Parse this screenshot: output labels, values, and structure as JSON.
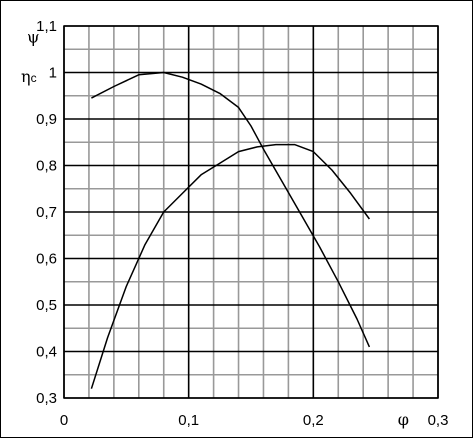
{
  "chart_data": {
    "type": "line",
    "xlim": [
      0,
      0.3
    ],
    "ylim": [
      0.3,
      1.1
    ],
    "x_ticks": [
      {
        "value": 0,
        "label": "0"
      },
      {
        "value": 0.1,
        "label": "0,1"
      },
      {
        "value": 0.2,
        "label": "0,2"
      },
      {
        "value": 0.3,
        "label": "0,3"
      }
    ],
    "y_ticks": [
      {
        "value": 0.3,
        "label": "0,3"
      },
      {
        "value": 0.4,
        "label": "0,4"
      },
      {
        "value": 0.5,
        "label": "0,5"
      },
      {
        "value": 0.6,
        "label": "0,6"
      },
      {
        "value": 0.7,
        "label": "0,7"
      },
      {
        "value": 0.8,
        "label": "0,8"
      },
      {
        "value": 0.9,
        "label": "0,9"
      },
      {
        "value": 1.0,
        "label": "1"
      },
      {
        "value": 1.1,
        "label": "1,1"
      }
    ],
    "grid": {
      "minor_step_x": 0.02,
      "minor_step_y": 0.05,
      "major_step_x": 0.1,
      "major_step_y": 0.1
    },
    "xlabel": "φ",
    "ylabel_lines": [
      "ψ",
      "η"
    ],
    "ylabel_sub": "c",
    "series": [
      {
        "color": "#000000",
        "points": [
          [
            0.022,
            0.945
          ],
          [
            0.04,
            0.97
          ],
          [
            0.06,
            0.995
          ],
          [
            0.08,
            1.0
          ],
          [
            0.095,
            0.99
          ],
          [
            0.11,
            0.975
          ],
          [
            0.125,
            0.955
          ],
          [
            0.14,
            0.925
          ],
          [
            0.15,
            0.885
          ],
          [
            0.16,
            0.835
          ],
          [
            0.175,
            0.765
          ],
          [
            0.19,
            0.695
          ],
          [
            0.205,
            0.625
          ],
          [
            0.22,
            0.55
          ],
          [
            0.235,
            0.47
          ],
          [
            0.245,
            0.41
          ]
        ]
      },
      {
        "color": "#000000",
        "points": [
          [
            0.022,
            0.32
          ],
          [
            0.035,
            0.43
          ],
          [
            0.05,
            0.54
          ],
          [
            0.065,
            0.63
          ],
          [
            0.08,
            0.7
          ],
          [
            0.095,
            0.74
          ],
          [
            0.11,
            0.78
          ],
          [
            0.125,
            0.805
          ],
          [
            0.14,
            0.83
          ],
          [
            0.155,
            0.84
          ],
          [
            0.17,
            0.845
          ],
          [
            0.185,
            0.845
          ],
          [
            0.2,
            0.83
          ],
          [
            0.215,
            0.79
          ],
          [
            0.23,
            0.74
          ],
          [
            0.245,
            0.685
          ]
        ]
      }
    ]
  }
}
